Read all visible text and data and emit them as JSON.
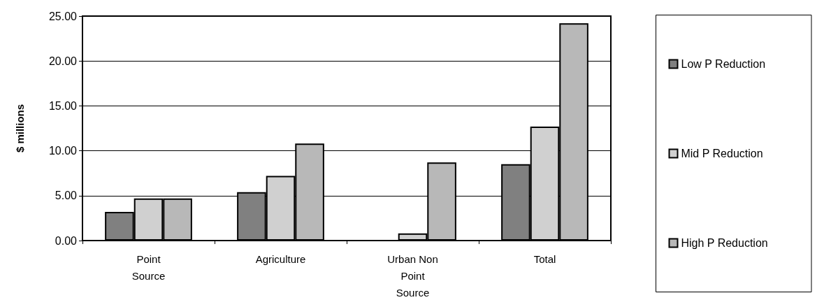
{
  "chart_data": {
    "type": "bar",
    "ylabel": "$ millions",
    "categories": [
      "Point\nSource",
      "Agriculture",
      "Urban Non\nPoint\nSource",
      "Total"
    ],
    "series": [
      {
        "name": "Low P Reduction",
        "color": "#808080",
        "values": [
          3.2,
          5.4,
          null,
          8.5
        ]
      },
      {
        "name": "Mid P Reduction",
        "color": "#d0d0d0",
        "values": [
          4.7,
          7.2,
          0.8,
          12.7
        ]
      },
      {
        "name": "High P Reduction",
        "color": "#b8b8b8",
        "values": [
          4.7,
          10.8,
          8.7,
          24.2
        ]
      }
    ],
    "ylim": [
      0,
      25
    ],
    "yticks": [
      {
        "value": 0,
        "label": "0.00"
      },
      {
        "value": 5,
        "label": "5.00"
      },
      {
        "value": 10,
        "label": "10.00"
      },
      {
        "value": 15,
        "label": "15.00"
      },
      {
        "value": 20,
        "label": "20.00"
      },
      {
        "value": 25,
        "label": "25.00"
      }
    ],
    "grid": "y",
    "legend": "right"
  }
}
